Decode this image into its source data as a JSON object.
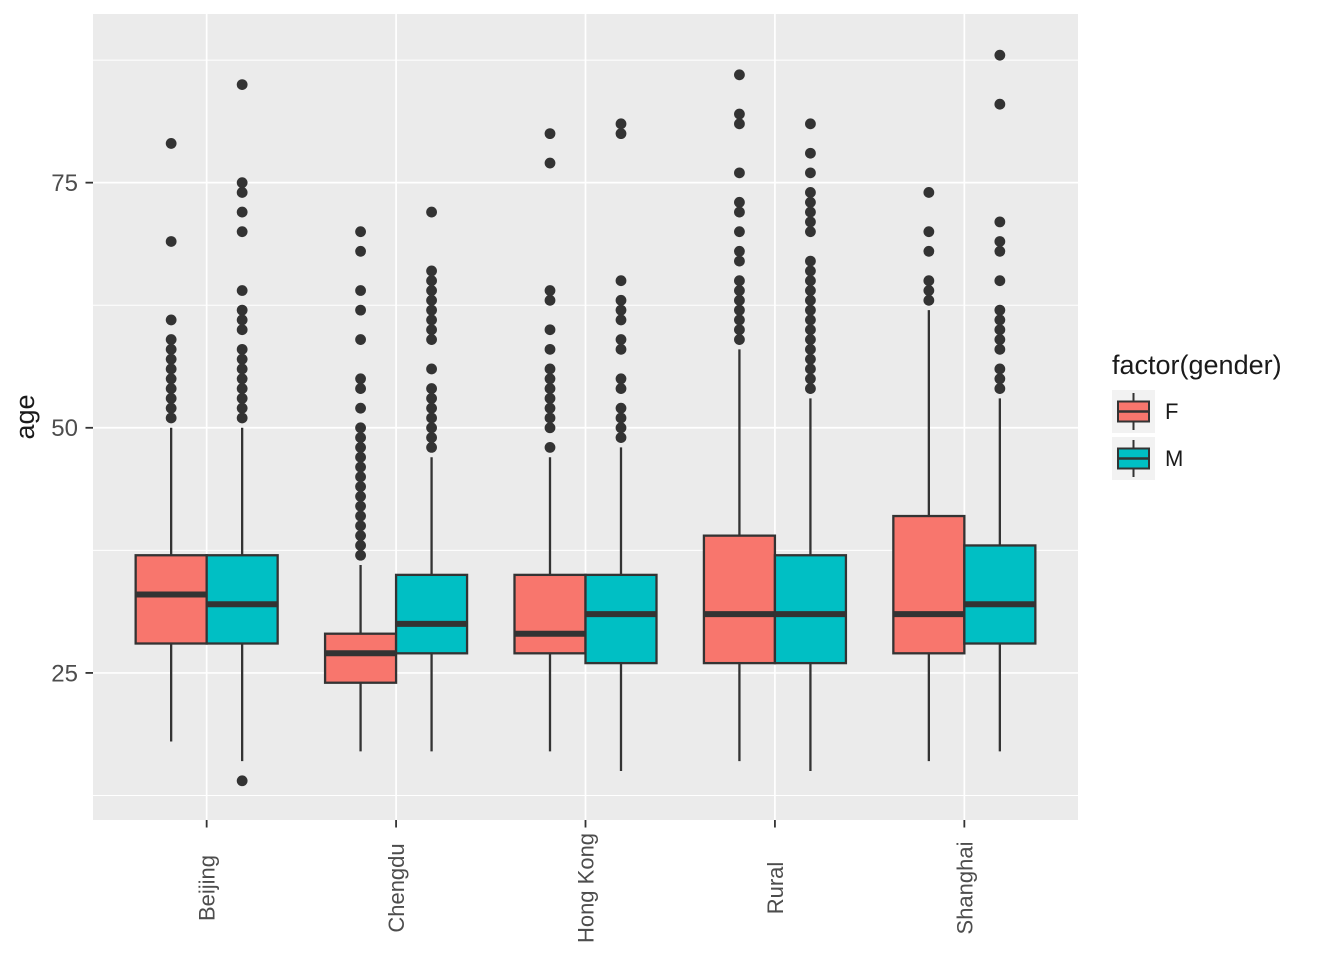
{
  "style": {
    "panel_bg": "#EBEBEB",
    "grid_color": "#FFFFFF",
    "box_outline": "#333333",
    "outlier_color": "#333333",
    "axis_text_color": "#4D4D4D",
    "tick_mark_color": "#333333",
    "legend_key_bg": "#F2F2F2",
    "female_color": "#F8766D",
    "male_color": "#00BFC4"
  },
  "chart_data": {
    "type": "boxplot",
    "title": "",
    "xlabel": "",
    "ylabel": "age",
    "legend_title": "factor(gender)",
    "legend_position": "right",
    "grid": "on",
    "categories": [
      "Beijing",
      "Chengdu",
      "Hong Kong",
      "Rural",
      "Shanghai"
    ],
    "y_ticks": [
      25,
      50,
      75
    ],
    "y_minor_ticks": [
      12.5,
      37.5,
      62.5,
      87.5
    ],
    "ylim": [
      10,
      92.2
    ],
    "series": [
      {
        "name": "F",
        "color": "#F8766D",
        "boxes": [
          {
            "category": "Beijing",
            "whisker_low": 18,
            "q1": 28,
            "median": 33,
            "q3": 37,
            "whisker_high": 50,
            "outliers": [
              79,
              69,
              61,
              59,
              58,
              57,
              56,
              55,
              54,
              53,
              52,
              51
            ]
          },
          {
            "category": "Chengdu",
            "whisker_low": 17,
            "q1": 24,
            "median": 27,
            "q3": 29,
            "whisker_high": 36,
            "outliers": [
              70,
              68,
              64,
              62,
              59,
              55,
              54,
              52,
              50,
              49,
              48,
              47,
              46,
              45,
              44,
              43,
              42,
              41,
              40,
              39,
              38,
              37
            ]
          },
          {
            "category": "Hong Kong",
            "whisker_low": 17,
            "q1": 27,
            "median": 29,
            "q3": 35,
            "whisker_high": 47,
            "outliers": [
              80,
              77,
              64,
              63,
              60,
              58,
              56,
              55,
              54,
              53,
              52,
              51,
              50,
              48
            ]
          },
          {
            "category": "Rural",
            "whisker_low": 16,
            "q1": 26,
            "median": 31,
            "q3": 39,
            "whisker_high": 58,
            "outliers": [
              86,
              82,
              81,
              76,
              73,
              72,
              70,
              68,
              67,
              65,
              64,
              63,
              62,
              61,
              60,
              59
            ]
          },
          {
            "category": "Shanghai",
            "whisker_low": 16,
            "q1": 27,
            "median": 31,
            "q3": 41,
            "whisker_high": 62,
            "outliers": [
              74,
              70,
              68,
              65,
              64,
              63
            ]
          }
        ]
      },
      {
        "name": "M",
        "color": "#00BFC4",
        "boxes": [
          {
            "category": "Beijing",
            "whisker_low": 16,
            "q1": 28,
            "median": 32,
            "q3": 37,
            "whisker_high": 50,
            "outliers": [
              85,
              75,
              74,
              72,
              70,
              64,
              62,
              61,
              60,
              58,
              57,
              56,
              55,
              54,
              53,
              52,
              51,
              14
            ]
          },
          {
            "category": "Chengdu",
            "whisker_low": 17,
            "q1": 27,
            "median": 30,
            "q3": 35,
            "whisker_high": 47,
            "outliers": [
              72,
              66,
              65,
              64,
              63,
              62,
              61,
              60,
              59,
              56,
              54,
              53,
              52,
              51,
              50,
              49,
              48
            ]
          },
          {
            "category": "Hong Kong",
            "whisker_low": 15,
            "q1": 26,
            "median": 31,
            "q3": 35,
            "whisker_high": 48,
            "outliers": [
              81,
              80,
              65,
              63,
              62,
              61,
              59,
              58,
              55,
              54,
              52,
              51,
              50,
              49
            ]
          },
          {
            "category": "Rural",
            "whisker_low": 15,
            "q1": 26,
            "median": 31,
            "q3": 37,
            "whisker_high": 53,
            "outliers": [
              81,
              78,
              76,
              74,
              73,
              72,
              71,
              70,
              67,
              66,
              65,
              64,
              63,
              62,
              61,
              60,
              59,
              58,
              57,
              56,
              55,
              54
            ]
          },
          {
            "category": "Shanghai",
            "whisker_low": 17,
            "q1": 28,
            "median": 32,
            "q3": 38,
            "whisker_high": 53,
            "outliers": [
              88,
              83,
              71,
              69,
              68,
              65,
              62,
              61,
              60,
              59,
              58,
              56,
              55,
              54
            ]
          }
        ]
      }
    ]
  }
}
